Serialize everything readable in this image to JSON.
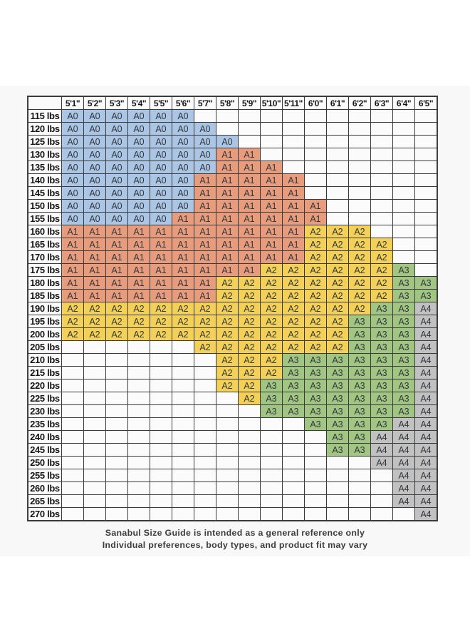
{
  "chart_data": {
    "type": "table",
    "title": "Sanabul Size Guide",
    "columns": [
      "5'1\"",
      "5'2\"",
      "5'3\"",
      "5'4\"",
      "5'5\"",
      "5'6\"",
      "5'7\"",
      "5'8\"",
      "5'9\"",
      "5'10\"",
      "5'11\"",
      "6'0\"",
      "6'1\"",
      "6'2\"",
      "6'3\"",
      "6'4\"",
      "6'5\""
    ],
    "rows": [
      {
        "label": "115 lbs",
        "values": [
          "A0",
          "A0",
          "A0",
          "A0",
          "A0",
          "A0",
          "",
          "",
          "",
          "",
          "",
          "",
          "",
          "",
          "",
          "",
          ""
        ]
      },
      {
        "label": "120 lbs",
        "values": [
          "A0",
          "A0",
          "A0",
          "A0",
          "A0",
          "A0",
          "A0",
          "",
          "",
          "",
          "",
          "",
          "",
          "",
          "",
          "",
          ""
        ]
      },
      {
        "label": "125 lbs",
        "values": [
          "A0",
          "A0",
          "A0",
          "A0",
          "A0",
          "A0",
          "A0",
          "A0",
          "",
          "",
          "",
          "",
          "",
          "",
          "",
          "",
          ""
        ]
      },
      {
        "label": "130 lbs",
        "values": [
          "A0",
          "A0",
          "A0",
          "A0",
          "A0",
          "A0",
          "A0",
          "A1",
          "A1",
          "",
          "",
          "",
          "",
          "",
          "",
          "",
          ""
        ]
      },
      {
        "label": "135 lbs",
        "values": [
          "A0",
          "A0",
          "A0",
          "A0",
          "A0",
          "A0",
          "A0",
          "A1",
          "A1",
          "A1",
          "",
          "",
          "",
          "",
          "",
          "",
          ""
        ]
      },
      {
        "label": "140 lbs",
        "values": [
          "A0",
          "A0",
          "A0",
          "A0",
          "A0",
          "A0",
          "A1",
          "A1",
          "A1",
          "A1",
          "A1",
          "",
          "",
          "",
          "",
          "",
          ""
        ]
      },
      {
        "label": "145 lbs",
        "values": [
          "A0",
          "A0",
          "A0",
          "A0",
          "A0",
          "A0",
          "A1",
          "A1",
          "A1",
          "A1",
          "A1",
          "",
          "",
          "",
          "",
          "",
          ""
        ]
      },
      {
        "label": "150 lbs",
        "values": [
          "A0",
          "A0",
          "A0",
          "A0",
          "A0",
          "A0",
          "A1",
          "A1",
          "A1",
          "A1",
          "A1",
          "A1",
          "",
          "",
          "",
          "",
          ""
        ]
      },
      {
        "label": "155 lbs",
        "values": [
          "A0",
          "A0",
          "A0",
          "A0",
          "A0",
          "A1",
          "A1",
          "A1",
          "A1",
          "A1",
          "A1",
          "A1",
          "",
          "",
          "",
          "",
          ""
        ]
      },
      {
        "label": "160 lbs",
        "values": [
          "A1",
          "A1",
          "A1",
          "A1",
          "A1",
          "A1",
          "A1",
          "A1",
          "A1",
          "A1",
          "A1",
          "A2",
          "A2",
          "A2",
          "",
          "",
          ""
        ]
      },
      {
        "label": "165 lbs",
        "values": [
          "A1",
          "A1",
          "A1",
          "A1",
          "A1",
          "A1",
          "A1",
          "A1",
          "A1",
          "A1",
          "A1",
          "A2",
          "A2",
          "A2",
          "A2",
          "",
          ""
        ]
      },
      {
        "label": "170 lbs",
        "values": [
          "A1",
          "A1",
          "A1",
          "A1",
          "A1",
          "A1",
          "A1",
          "A1",
          "A1",
          "A1",
          "A1",
          "A2",
          "A2",
          "A2",
          "A2",
          "",
          ""
        ]
      },
      {
        "label": "175 lbs",
        "values": [
          "A1",
          "A1",
          "A1",
          "A1",
          "A1",
          "A1",
          "A1",
          "A1",
          "A1",
          "A2",
          "A2",
          "A2",
          "A2",
          "A2",
          "A2",
          "A3",
          ""
        ]
      },
      {
        "label": "180 lbs",
        "values": [
          "A1",
          "A1",
          "A1",
          "A1",
          "A1",
          "A1",
          "A1",
          "A2",
          "A2",
          "A2",
          "A2",
          "A2",
          "A2",
          "A2",
          "A2",
          "A3",
          "A3"
        ]
      },
      {
        "label": "185 lbs",
        "values": [
          "A1",
          "A1",
          "A1",
          "A1",
          "A1",
          "A1",
          "A1",
          "A2",
          "A2",
          "A2",
          "A2",
          "A2",
          "A2",
          "A2",
          "A2",
          "A3",
          "A3"
        ]
      },
      {
        "label": "190 lbs",
        "values": [
          "A2",
          "A2",
          "A2",
          "A2",
          "A2",
          "A2",
          "A2",
          "A2",
          "A2",
          "A2",
          "A2",
          "A2",
          "A2",
          "A2",
          "A3",
          "A3",
          "A4"
        ]
      },
      {
        "label": "195 lbs",
        "values": [
          "A2",
          "A2",
          "A2",
          "A2",
          "A2",
          "A2",
          "A2",
          "A2",
          "A2",
          "A2",
          "A2",
          "A2",
          "A2",
          "A3",
          "A3",
          "A3",
          "A4"
        ]
      },
      {
        "label": "200 lbs",
        "values": [
          "A2",
          "A2",
          "A2",
          "A2",
          "A2",
          "A2",
          "A2",
          "A2",
          "A2",
          "A2",
          "A2",
          "A2",
          "A2",
          "A3",
          "A3",
          "A3",
          "A4"
        ]
      },
      {
        "label": "205 lbs",
        "values": [
          "",
          "",
          "",
          "",
          "",
          "",
          "A2",
          "A2",
          "A2",
          "A2",
          "A2",
          "A2",
          "A2",
          "A3",
          "A3",
          "A3",
          "A4"
        ]
      },
      {
        "label": "210 lbs",
        "values": [
          "",
          "",
          "",
          "",
          "",
          "",
          "",
          "A2",
          "A2",
          "A2",
          "A3",
          "A3",
          "A3",
          "A3",
          "A3",
          "A3",
          "A4"
        ]
      },
      {
        "label": "215 lbs",
        "values": [
          "",
          "",
          "",
          "",
          "",
          "",
          "",
          "A2",
          "A2",
          "A2",
          "A3",
          "A3",
          "A3",
          "A3",
          "A3",
          "A3",
          "A4"
        ]
      },
      {
        "label": "220 lbs",
        "values": [
          "",
          "",
          "",
          "",
          "",
          "",
          "",
          "A2",
          "A2",
          "A3",
          "A3",
          "A3",
          "A3",
          "A3",
          "A3",
          "A3",
          "A4"
        ]
      },
      {
        "label": "225 lbs",
        "values": [
          "",
          "",
          "",
          "",
          "",
          "",
          "",
          "",
          "A2",
          "A3",
          "A3",
          "A3",
          "A3",
          "A3",
          "A3",
          "A3",
          "A4"
        ]
      },
      {
        "label": "230 lbs",
        "values": [
          "",
          "",
          "",
          "",
          "",
          "",
          "",
          "",
          "",
          "A3",
          "A3",
          "A3",
          "A3",
          "A3",
          "A3",
          "A3",
          "A4"
        ]
      },
      {
        "label": "235 lbs",
        "values": [
          "",
          "",
          "",
          "",
          "",
          "",
          "",
          "",
          "",
          "",
          "",
          "A3",
          "A3",
          "A3",
          "A3",
          "A4",
          "A4"
        ]
      },
      {
        "label": "240 lbs",
        "values": [
          "",
          "",
          "",
          "",
          "",
          "",
          "",
          "",
          "",
          "",
          "",
          "",
          "A3",
          "A3",
          "A4",
          "A4",
          "A4"
        ]
      },
      {
        "label": "245 lbs",
        "values": [
          "",
          "",
          "",
          "",
          "",
          "",
          "",
          "",
          "",
          "",
          "",
          "",
          "A3",
          "A3",
          "A4",
          "A4",
          "A4"
        ]
      },
      {
        "label": "250 lbs",
        "values": [
          "",
          "",
          "",
          "",
          "",
          "",
          "",
          "",
          "",
          "",
          "",
          "",
          "",
          "",
          "A4",
          "A4",
          "A4"
        ]
      },
      {
        "label": "255 lbs",
        "values": [
          "",
          "",
          "",
          "",
          "",
          "",
          "",
          "",
          "",
          "",
          "",
          "",
          "",
          "",
          "",
          "A4",
          "A4"
        ]
      },
      {
        "label": "260 lbs",
        "values": [
          "",
          "",
          "",
          "",
          "",
          "",
          "",
          "",
          "",
          "",
          "",
          "",
          "",
          "",
          "",
          "A4",
          "A4"
        ]
      },
      {
        "label": "265 lbs",
        "values": [
          "",
          "",
          "",
          "",
          "",
          "",
          "",
          "",
          "",
          "",
          "",
          "",
          "",
          "",
          "",
          "A4",
          "A4"
        ]
      },
      {
        "label": "270 lbs",
        "values": [
          "",
          "",
          "",
          "",
          "",
          "",
          "",
          "",
          "",
          "",
          "",
          "",
          "",
          "",
          "",
          "",
          "A4"
        ]
      }
    ],
    "size_colors": {
      "A0": "#abc6e5",
      "A1": "#e79d7d",
      "A2": "#f3d158",
      "A3": "#a1c583",
      "A4": "#c1c1c1"
    },
    "grid_color": "#3a3a3a",
    "legend_position": "none"
  },
  "caption": {
    "line1": "Sanabul Size Guide is intended as a general reference only",
    "line2": "Individual preferences, body types, and product fit may vary"
  }
}
